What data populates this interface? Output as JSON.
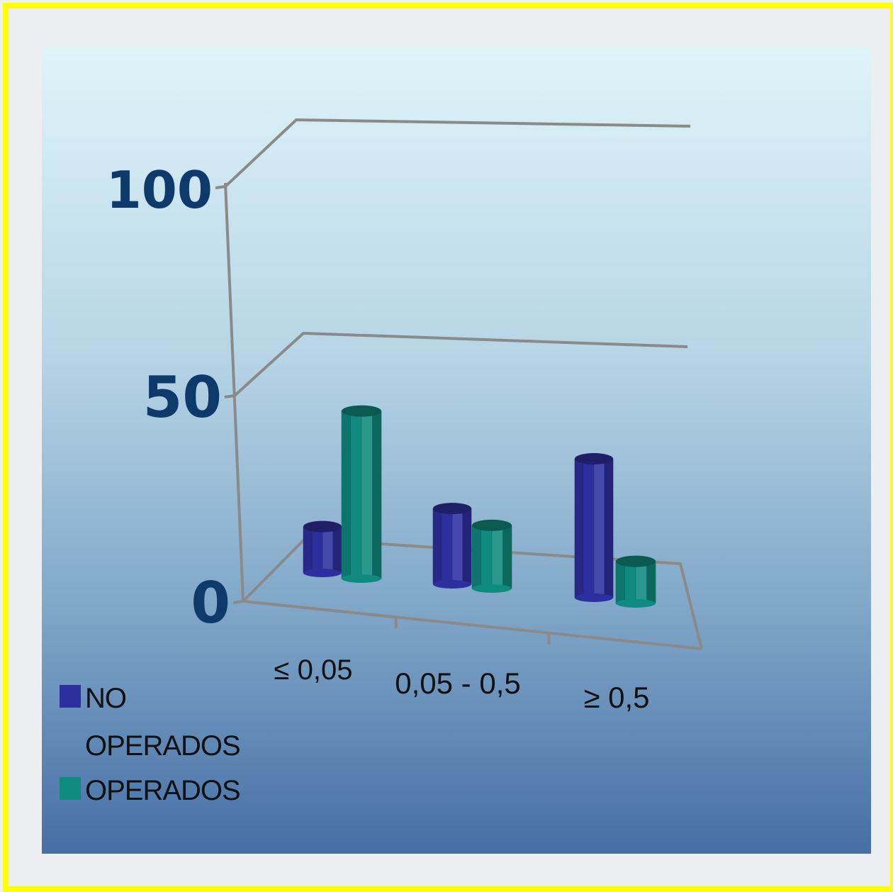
{
  "chart_data": {
    "type": "bar",
    "categories": [
      "≤ 0,05",
      "0,05 - 0,5",
      "≥ 0,5"
    ],
    "series": [
      {
        "name": "NO OPERADOS",
        "values": [
          22,
          36,
          66
        ],
        "color": "#2e2f9f"
      },
      {
        "name": "OPERADOS",
        "values": [
          77,
          30,
          20
        ],
        "color": "#0f8a7e"
      }
    ],
    "y_ticks": [
      "0",
      "50",
      "100"
    ],
    "ylim": [
      0,
      100
    ],
    "legend_position": "bottom-left",
    "three_d": true
  }
}
